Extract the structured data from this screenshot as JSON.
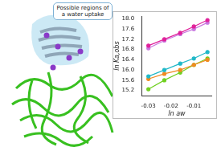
{
  "chart_data": {
    "type": "scatter",
    "x_label": "ln aw",
    "y_label": "ln Ka,obs",
    "x": [
      -0.03,
      -0.023,
      -0.016,
      -0.01,
      -0.004
    ],
    "series": [
      {
        "color": "#e0209a",
        "values": [
          16.95,
          17.2,
          17.45,
          17.7,
          17.95
        ],
        "marker": "circle",
        "line_style": "solid"
      },
      {
        "color": "#c878e0",
        "values": [
          16.85,
          17.15,
          17.4,
          17.6,
          17.85
        ],
        "marker": "circle",
        "line_style": "solid"
      },
      {
        "color": "#20b8c8",
        "values": [
          15.75,
          16.0,
          16.25,
          16.45,
          16.7
        ],
        "marker": "circle",
        "line_style": "solid"
      },
      {
        "color": "#f08a20",
        "values": [
          15.65,
          15.85,
          16.0,
          16.2,
          16.4
        ],
        "marker": "circle",
        "line_style": "solid"
      },
      {
        "color": "#70d020",
        "values": [
          15.25,
          15.6,
          15.9,
          16.2,
          16.45
        ],
        "marker": "circle",
        "line_style": "solid"
      }
    ],
    "xlim": [
      -0.033,
      -0.002
    ],
    "xticks": [
      -0.03,
      -0.02,
      -0.01
    ],
    "ylim": [
      15.0,
      18.1
    ],
    "yticks": [
      15.2,
      15.6,
      {
        "value": 16,
        "label": "16.0"
      },
      16.4,
      16.8,
      17.2,
      17.6,
      {
        "value": 18,
        "label": "18.0"
      }
    ],
    "grid": false
  },
  "diagram": {
    "callout": "Possible regions of a water uptake"
  }
}
